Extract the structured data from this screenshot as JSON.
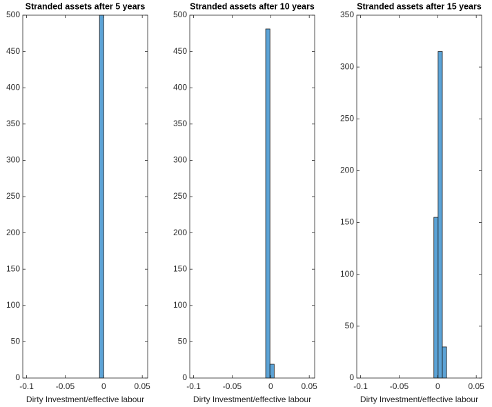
{
  "chart_data": [
    {
      "type": "histogram",
      "title": "Stranded assets after 5 years",
      "x_label": "Dirty Investment/effective labour",
      "bins": [
        -0.0055,
        0
      ],
      "counts": [
        500
      ],
      "color": "#5ca3d6",
      "xlim": [
        -0.105,
        0.057
      ],
      "xticks": [
        -0.1,
        -0.05,
        0,
        0.05
      ],
      "ylim": [
        0,
        500
      ],
      "yticks": [
        0,
        50,
        100,
        150,
        200,
        250,
        300,
        350,
        400,
        450,
        500
      ]
    },
    {
      "type": "histogram",
      "title": "Stranded assets after 10 years",
      "x_label": "Dirty Investment/effective labour",
      "bins": [
        -0.0065,
        -0.001,
        0.0045
      ],
      "counts": [
        481,
        19
      ],
      "color": "#5ca3d6",
      "xlim": [
        -0.105,
        0.057
      ],
      "xticks": [
        -0.1,
        -0.05,
        0,
        0.05
      ],
      "ylim": [
        0,
        500
      ],
      "yticks": [
        0,
        50,
        100,
        150,
        200,
        250,
        300,
        350,
        400,
        450,
        500
      ]
    },
    {
      "type": "histogram",
      "title": "Stranded assets after 15 years",
      "x_label": "Dirty Investment/effective labour",
      "bins": [
        -0.005,
        0.0005,
        0.006,
        0.0115
      ],
      "counts": [
        155,
        315,
        30
      ],
      "color": "#5ca3d6",
      "xlim": [
        -0.105,
        0.057
      ],
      "xticks": [
        -0.1,
        -0.05,
        0,
        0.05
      ],
      "ylim": [
        0,
        350
      ],
      "yticks": [
        0,
        50,
        100,
        150,
        200,
        250,
        300,
        350
      ]
    }
  ]
}
